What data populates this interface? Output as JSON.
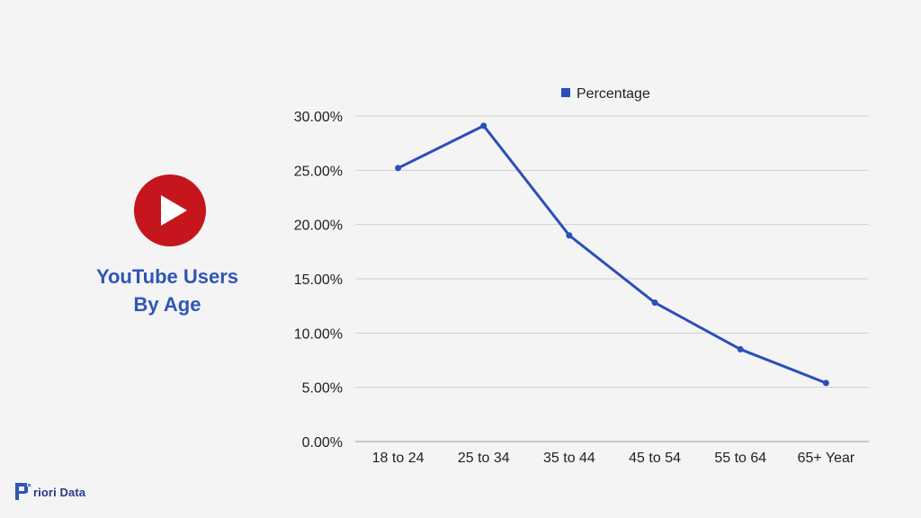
{
  "title": {
    "line1": "YouTube Users",
    "line2": "By Age"
  },
  "brand": {
    "name": "riori Data",
    "logo_icon": "priori-p-pixel-icon"
  },
  "colors": {
    "series": "#2a4fb8",
    "title": "#2f56b8",
    "logo_red": "#c4161c",
    "grid": "#cfcfcf"
  },
  "chart_data": {
    "type": "line",
    "categories": [
      "18 to 24",
      "25 to 34",
      "35 to 44",
      "45 to 54",
      "55 to 64",
      "65+ Year"
    ],
    "series": [
      {
        "name": "Percentage",
        "values": [
          25.2,
          29.1,
          19.0,
          12.8,
          8.5,
          5.4
        ]
      }
    ],
    "ylim": [
      0,
      30
    ],
    "yticks": [
      0,
      5,
      10,
      15,
      20,
      25,
      30
    ],
    "ytick_labels": [
      "0.00%",
      "5.00%",
      "10.00%",
      "15.00%",
      "20.00%",
      "25.00%",
      "30.00%"
    ],
    "grid": true,
    "legend": "top-center"
  }
}
